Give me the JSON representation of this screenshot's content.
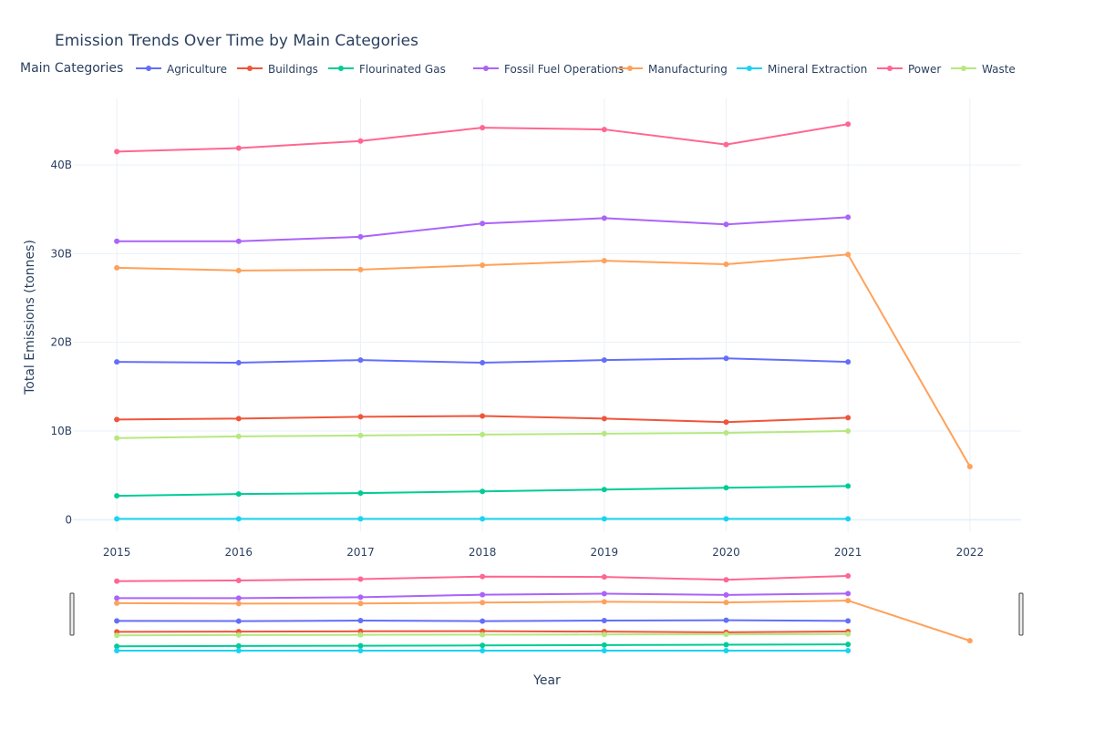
{
  "chart_data": {
    "type": "line",
    "title": "Emission Trends Over Time by Main Categories",
    "legend_title": "Main Categories",
    "legend_placement": "top",
    "xlabel": "Year",
    "ylabel": "Total Emissions (tonnes)",
    "x": [
      2015,
      2016,
      2017,
      2018,
      2019,
      2020,
      2021,
      2022
    ],
    "x_ticks": [
      "2015",
      "2016",
      "2017",
      "2018",
      "2019",
      "2020",
      "2021",
      "2022"
    ],
    "xlim": [
      2014.64,
      2022.42
    ],
    "ylim": [
      -1.3,
      47.5
    ],
    "y_ticks": [
      0,
      10,
      20,
      30,
      40
    ],
    "y_tick_labels": [
      "0",
      "10B",
      "20B",
      "30B",
      "40B"
    ],
    "y_units": "billion tonnes",
    "grid": true,
    "range_slider": true,
    "series": [
      {
        "name": "Agriculture",
        "color": "#636efa",
        "values": [
          17.8,
          17.7,
          18.0,
          17.7,
          18.0,
          18.2,
          17.8,
          null
        ]
      },
      {
        "name": "Buildings",
        "color": "#ef553b",
        "values": [
          11.3,
          11.4,
          11.6,
          11.7,
          11.4,
          11.0,
          11.5,
          null
        ]
      },
      {
        "name": "Flourinated Gas",
        "color": "#00cc96",
        "values": [
          2.7,
          2.9,
          3.0,
          3.2,
          3.4,
          3.6,
          3.8,
          null
        ]
      },
      {
        "name": "Fossil Fuel Operations",
        "color": "#ab63fa",
        "values": [
          31.4,
          31.4,
          31.9,
          33.4,
          34.0,
          33.3,
          34.1,
          null
        ]
      },
      {
        "name": "Manufacturing",
        "color": "#ffa15a",
        "values": [
          28.4,
          28.1,
          28.2,
          28.7,
          29.2,
          28.8,
          29.9,
          6.0
        ]
      },
      {
        "name": "Mineral Extraction",
        "color": "#19d3f3",
        "values": [
          0.1,
          0.1,
          0.1,
          0.1,
          0.1,
          0.1,
          0.1,
          null
        ]
      },
      {
        "name": "Power",
        "color": "#ff6692",
        "values": [
          41.5,
          41.9,
          42.7,
          44.2,
          44.0,
          42.3,
          44.6,
          null
        ]
      },
      {
        "name": "Waste",
        "color": "#b6e880",
        "values": [
          9.2,
          9.4,
          9.5,
          9.6,
          9.7,
          9.8,
          10.0,
          null
        ]
      }
    ]
  }
}
